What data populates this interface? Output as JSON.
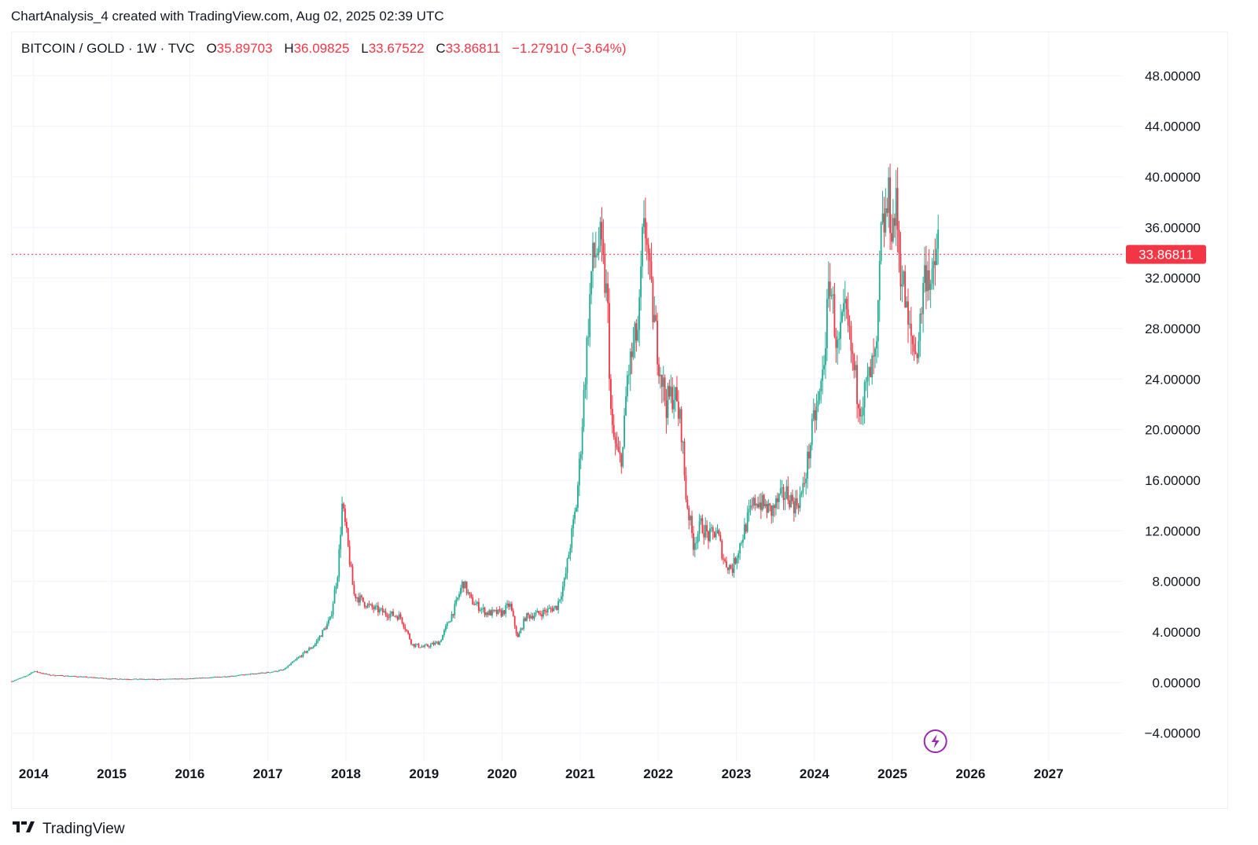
{
  "header": {
    "attribution": "ChartAnalysis_4 created with TradingView.com, Aug 02, 2025 02:39 UTC"
  },
  "legend": {
    "symbol": "BITCOIN / GOLD · 1W · TVC",
    "open_label": "O",
    "open": "35.89703",
    "high_label": "H",
    "high": "36.09825",
    "low_label": "L",
    "low": "33.67522",
    "close_label": "C",
    "close": "33.86811",
    "change": "−1.27910 (−3.64%)"
  },
  "footer": {
    "brand": "TradingView",
    "logo_icon": "tradingview-logo-icon"
  },
  "colors": {
    "up": "#22ab94",
    "down": "#f23645",
    "grid": "#f0f3fa",
    "price_line": "#f23645",
    "flash": "#9c27b0"
  },
  "chart_data": {
    "type": "candlestick",
    "interval": "1W",
    "ylim": [
      -6.2,
      51.5
    ],
    "xlim": [
      2013.72,
      2027.95
    ],
    "y_ticks": [
      "48.00000",
      "44.00000",
      "40.00000",
      "36.00000",
      "32.00000",
      "28.00000",
      "24.00000",
      "20.00000",
      "16.00000",
      "12.00000",
      "8.00000",
      "4.00000",
      "0.00000",
      "−4.00000"
    ],
    "y_tick_values": [
      48,
      44,
      40,
      36,
      32,
      28,
      24,
      20,
      16,
      12,
      8,
      4,
      0,
      -4
    ],
    "x_ticks": [
      "2014",
      "2015",
      "2016",
      "2017",
      "2018",
      "2019",
      "2020",
      "2021",
      "2022",
      "2023",
      "2024",
      "2025",
      "2026",
      "2027"
    ],
    "x_tick_values": [
      2014,
      2015,
      2016,
      2017,
      2018,
      2019,
      2020,
      2021,
      2022,
      2023,
      2024,
      2025,
      2026,
      2027
    ],
    "last_price": 33.86811,
    "last_price_label": "33.86811",
    "grid": true,
    "price_path": [
      [
        2013.72,
        0.1
      ],
      [
        2013.9,
        0.5
      ],
      [
        2014.0,
        0.9
      ],
      [
        2014.2,
        0.6
      ],
      [
        2014.5,
        0.5
      ],
      [
        2015.0,
        0.3
      ],
      [
        2015.5,
        0.25
      ],
      [
        2016.0,
        0.3
      ],
      [
        2016.5,
        0.5
      ],
      [
        2017.0,
        0.8
      ],
      [
        2017.2,
        1.0
      ],
      [
        2017.4,
        2.0
      ],
      [
        2017.6,
        3.0
      ],
      [
        2017.8,
        5.0
      ],
      [
        2017.9,
        9.0
      ],
      [
        2017.95,
        14.0
      ],
      [
        2018.0,
        12.0
      ],
      [
        2018.1,
        7.0
      ],
      [
        2018.3,
        6.0
      ],
      [
        2018.5,
        5.5
      ],
      [
        2018.7,
        5.2
      ],
      [
        2018.85,
        3.0
      ],
      [
        2019.0,
        2.8
      ],
      [
        2019.2,
        3.2
      ],
      [
        2019.4,
        6.0
      ],
      [
        2019.5,
        8.0
      ],
      [
        2019.6,
        6.5
      ],
      [
        2019.8,
        5.5
      ],
      [
        2020.0,
        5.5
      ],
      [
        2020.1,
        6.2
      ],
      [
        2020.2,
        3.5
      ],
      [
        2020.3,
        5.2
      ],
      [
        2020.5,
        5.5
      ],
      [
        2020.7,
        6.0
      ],
      [
        2020.8,
        8.0
      ],
      [
        2020.95,
        14.0
      ],
      [
        2021.0,
        18.0
      ],
      [
        2021.05,
        23.0
      ],
      [
        2021.1,
        28.0
      ],
      [
        2021.15,
        33.0
      ],
      [
        2021.25,
        35.0
      ],
      [
        2021.35,
        30.0
      ],
      [
        2021.4,
        20.0
      ],
      [
        2021.5,
        17.5
      ],
      [
        2021.55,
        18.5
      ],
      [
        2021.6,
        24.0
      ],
      [
        2021.7,
        27.0
      ],
      [
        2021.75,
        28.0
      ],
      [
        2021.8,
        35.0
      ],
      [
        2021.85,
        36.0
      ],
      [
        2021.9,
        31.0
      ],
      [
        2022.0,
        26.0
      ],
      [
        2022.1,
        22.0
      ],
      [
        2022.2,
        23.0
      ],
      [
        2022.3,
        20.0
      ],
      [
        2022.35,
        15.0
      ],
      [
        2022.45,
        11.0
      ],
      [
        2022.55,
        12.5
      ],
      [
        2022.65,
        11.5
      ],
      [
        2022.75,
        12.0
      ],
      [
        2022.85,
        9.5
      ],
      [
        2022.95,
        9.0
      ],
      [
        2023.05,
        11.0
      ],
      [
        2023.15,
        13.0
      ],
      [
        2023.25,
        14.5
      ],
      [
        2023.35,
        14.0
      ],
      [
        2023.45,
        13.5
      ],
      [
        2023.55,
        14.5
      ],
      [
        2023.65,
        15.0
      ],
      [
        2023.75,
        14.0
      ],
      [
        2023.85,
        15.0
      ],
      [
        2023.95,
        19.0
      ],
      [
        2024.0,
        21.0
      ],
      [
        2024.05,
        22.0
      ],
      [
        2024.1,
        24.0
      ],
      [
        2024.15,
        28.0
      ],
      [
        2024.2,
        32.0
      ],
      [
        2024.25,
        29.0
      ],
      [
        2024.3,
        26.0
      ],
      [
        2024.35,
        28.0
      ],
      [
        2024.4,
        29.0
      ],
      [
        2024.45,
        27.0
      ],
      [
        2024.5,
        25.0
      ],
      [
        2024.55,
        23.0
      ],
      [
        2024.6,
        22.0
      ],
      [
        2024.65,
        23.0
      ],
      [
        2024.7,
        24.0
      ],
      [
        2024.8,
        26.0
      ],
      [
        2024.85,
        35.0
      ],
      [
        2024.9,
        36.5
      ],
      [
        2024.95,
        38.0
      ],
      [
        2025.0,
        36.0
      ],
      [
        2025.05,
        37.5
      ],
      [
        2025.1,
        33.0
      ],
      [
        2025.15,
        31.0
      ],
      [
        2025.2,
        28.0
      ],
      [
        2025.25,
        27.0
      ],
      [
        2025.3,
        26.0
      ],
      [
        2025.35,
        28.0
      ],
      [
        2025.4,
        32.0
      ],
      [
        2025.45,
        33.0
      ],
      [
        2025.5,
        31.0
      ],
      [
        2025.55,
        33.0
      ],
      [
        2025.58,
        35.9
      ],
      [
        2025.6,
        33.86811
      ]
    ]
  }
}
